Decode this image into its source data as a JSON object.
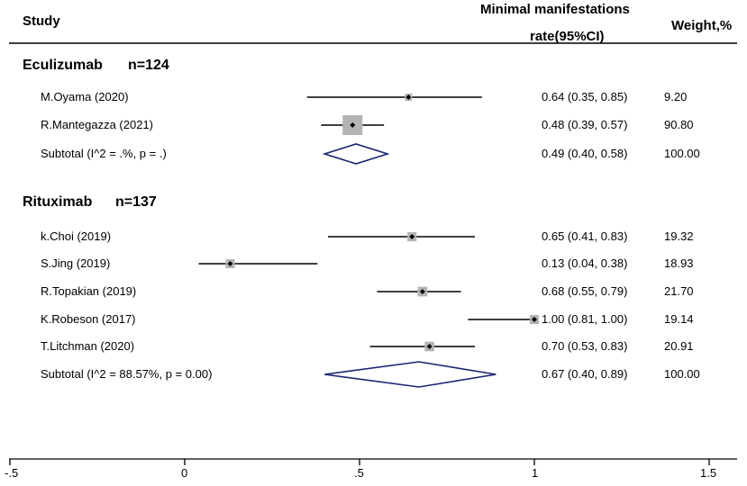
{
  "header": {
    "study": "Study",
    "rate_line1": "Minimal manifestations",
    "rate_line2": "rate(95%CI)",
    "weight": "Weight,%"
  },
  "groups": [
    {
      "drug": "Eculizumab",
      "n": "n=124",
      "studies": [
        {
          "name": "M.Oyama (2020)",
          "ci_text": "0.64 (0.35, 0.85)",
          "weight": "9.20",
          "est": 0.64,
          "lo": 0.35,
          "hi": 0.85,
          "w": 9.2
        },
        {
          "name": "R.Mantegazza (2021)",
          "ci_text": "0.48 (0.39, 0.57)",
          "weight": "90.80",
          "est": 0.48,
          "lo": 0.39,
          "hi": 0.57,
          "w": 90.8
        }
      ],
      "subtotal": {
        "label": "Subtotal  (I^2 = .%, p = .)",
        "ci_text": "0.49 (0.40, 0.58)",
        "weight": "100.00",
        "est": 0.49,
        "lo": 0.4,
        "hi": 0.58
      }
    },
    {
      "drug": "Rituximab",
      "n": "n=137",
      "studies": [
        {
          "name": "k.Choi (2019)",
          "ci_text": "0.65 (0.41, 0.83)",
          "weight": "19.32",
          "est": 0.65,
          "lo": 0.41,
          "hi": 0.83,
          "w": 19.32
        },
        {
          "name": "S.Jing (2019)",
          "ci_text": "0.13 (0.04, 0.38)",
          "weight": "18.93",
          "est": 0.13,
          "lo": 0.04,
          "hi": 0.38,
          "w": 18.93
        },
        {
          "name": "R.Topakian (2019)",
          "ci_text": "0.68 (0.55, 0.79)",
          "weight": "21.70",
          "est": 0.68,
          "lo": 0.55,
          "hi": 0.79,
          "w": 21.7
        },
        {
          "name": "K.Robeson (2017)",
          "ci_text": "1.00 (0.81, 1.00)",
          "weight": "19.14",
          "est": 1.0,
          "lo": 0.81,
          "hi": 1.0,
          "w": 19.14
        },
        {
          "name": "T.Litchman (2020)",
          "ci_text": "0.70 (0.53, 0.83)",
          "weight": "20.91",
          "est": 0.7,
          "lo": 0.53,
          "hi": 0.83,
          "w": 20.91
        }
      ],
      "subtotal": {
        "label": "Subtotal  (I^2 = 88.57%, p = 0.00)",
        "ci_text": "0.67 (0.40, 0.89)",
        "weight": "100.00",
        "est": 0.67,
        "lo": 0.4,
        "hi": 0.89
      }
    }
  ],
  "axis": {
    "ticks": [
      -0.5,
      0,
      0.5,
      1,
      1.5
    ],
    "tick_labels": [
      "-.5",
      "0",
      ".5",
      "1",
      "1.5"
    ]
  },
  "colors": {
    "box": "#b4b4b4",
    "diamond": "#1a2472",
    "line": "#000000"
  },
  "chart_data": {
    "type": "forest",
    "title": "",
    "xlabel": "",
    "ylabel": "Minimal manifestations rate(95%CI)",
    "xlim": [
      -0.5,
      1.5
    ],
    "series": [
      {
        "name": "Eculizumab",
        "n": 124,
        "studies": [
          {
            "study": "M.Oyama (2020)",
            "rate": 0.64,
            "ci": [
              0.35,
              0.85
            ],
            "weight": 9.2
          },
          {
            "study": "R.Mantegazza (2021)",
            "rate": 0.48,
            "ci": [
              0.39,
              0.57
            ],
            "weight": 90.8
          }
        ],
        "subtotal": {
          "rate": 0.49,
          "ci": [
            0.4,
            0.58
          ],
          "I2": ".%",
          "p": "."
        }
      },
      {
        "name": "Rituximab",
        "n": 137,
        "studies": [
          {
            "study": "k.Choi (2019)",
            "rate": 0.65,
            "ci": [
              0.41,
              0.83
            ],
            "weight": 19.32
          },
          {
            "study": "S.Jing (2019)",
            "rate": 0.13,
            "ci": [
              0.04,
              0.38
            ],
            "weight": 18.93
          },
          {
            "study": "R.Topakian (2019)",
            "rate": 0.68,
            "ci": [
              0.55,
              0.79
            ],
            "weight": 21.7
          },
          {
            "study": "K.Robeson (2017)",
            "rate": 1.0,
            "ci": [
              0.81,
              1.0
            ],
            "weight": 19.14
          },
          {
            "study": "T.Litchman (2020)",
            "rate": 0.7,
            "ci": [
              0.53,
              0.83
            ],
            "weight": 20.91
          }
        ],
        "subtotal": {
          "rate": 0.67,
          "ci": [
            0.4,
            0.89
          ],
          "I2": "88.57%",
          "p": "0.00"
        }
      }
    ]
  }
}
